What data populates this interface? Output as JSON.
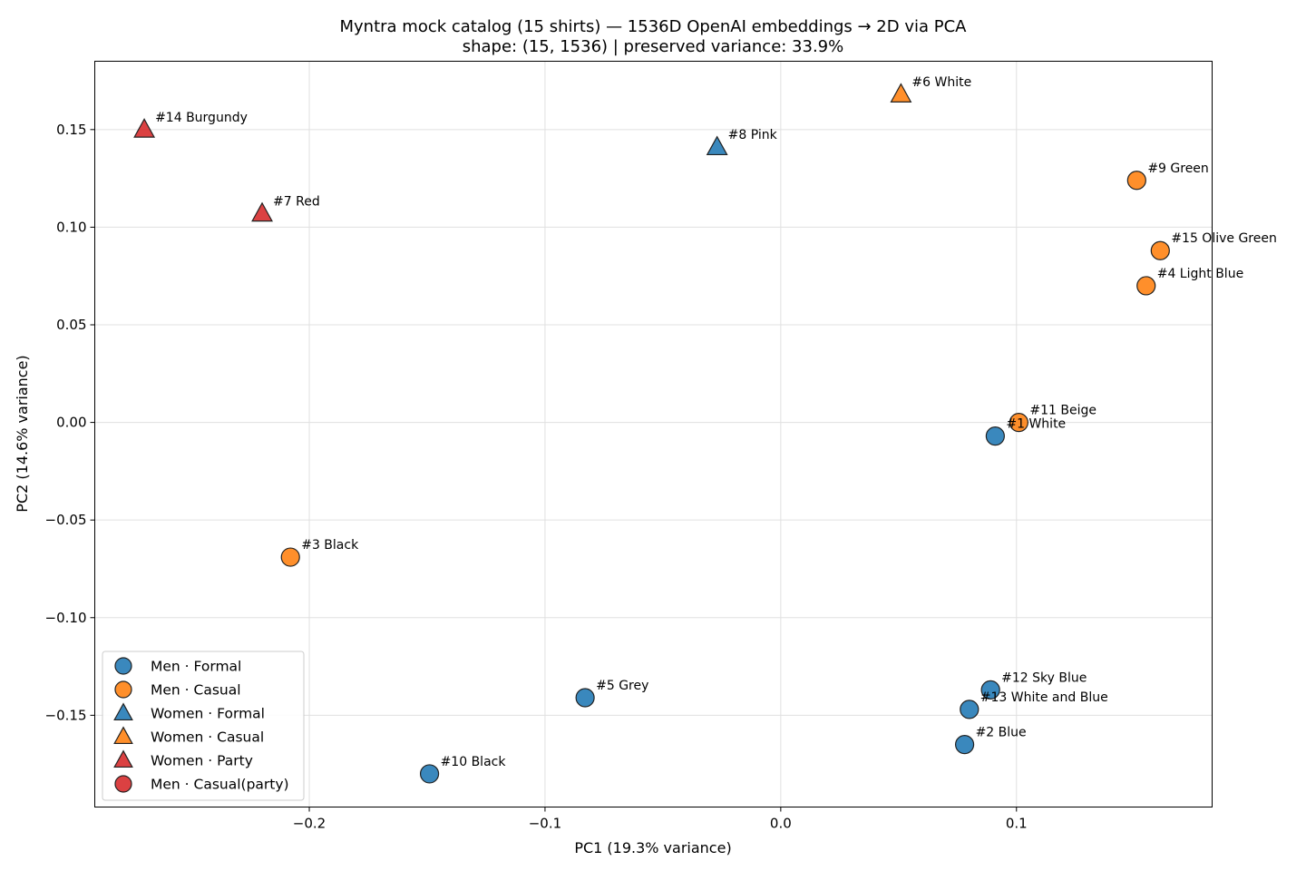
{
  "chart_data": {
    "type": "scatter",
    "title": "Myntra mock catalog (15 shirts) — 1536D OpenAI embeddings → 2D via PCA",
    "subtitle": "shape: (15, 1536)  |  preserved variance: 33.9%",
    "xlabel": "PC1 (19.3% variance)",
    "ylabel": "PC2 (14.6% variance)",
    "xlim": [
      -0.291,
      0.183
    ],
    "ylim": [
      -0.197,
      0.185
    ],
    "xticks": [
      {
        "value": -0.2,
        "label": "−0.2"
      },
      {
        "value": -0.1,
        "label": "−0.1"
      },
      {
        "value": 0.0,
        "label": "0.0"
      },
      {
        "value": 0.1,
        "label": "0.1"
      }
    ],
    "yticks": [
      {
        "value": 0.15,
        "label": "0.15"
      },
      {
        "value": 0.1,
        "label": "0.10"
      },
      {
        "value": 0.05,
        "label": "0.05"
      },
      {
        "value": 0.0,
        "label": "0.00"
      },
      {
        "value": -0.05,
        "label": "−0.05"
      },
      {
        "value": -0.1,
        "label": "−0.10"
      },
      {
        "value": -0.15,
        "label": "−0.15"
      }
    ],
    "grid": true,
    "legend_position": "lower-left",
    "series": [
      {
        "name": "Men · Formal",
        "marker": "circle",
        "color": "#1f77b4",
        "points": [
          {
            "label": "#1 White",
            "x": 0.091,
            "y": -0.007
          },
          {
            "label": "#2 Blue",
            "x": 0.078,
            "y": -0.165
          },
          {
            "label": "#5 Grey",
            "x": -0.083,
            "y": -0.141
          },
          {
            "label": "#10 Black",
            "x": -0.149,
            "y": -0.18
          },
          {
            "label": "#12 Sky Blue",
            "x": 0.089,
            "y": -0.137
          },
          {
            "label": "#13 White and Blue",
            "x": 0.08,
            "y": -0.147
          }
        ]
      },
      {
        "name": "Men · Casual",
        "marker": "circle",
        "color": "#ff7f0e",
        "points": [
          {
            "label": "#3 Black",
            "x": -0.208,
            "y": -0.069
          },
          {
            "label": "#4 Light Blue",
            "x": 0.155,
            "y": 0.07
          },
          {
            "label": "#9 Green",
            "x": 0.151,
            "y": 0.124
          },
          {
            "label": "#11 Beige",
            "x": 0.101,
            "y": 0.0
          },
          {
            "label": "#15 Olive Green",
            "x": 0.161,
            "y": 0.088
          }
        ]
      },
      {
        "name": "Women · Formal",
        "marker": "triangle",
        "color": "#1f77b4",
        "points": [
          {
            "label": "#8 Pink",
            "x": -0.027,
            "y": 0.141
          }
        ]
      },
      {
        "name": "Women · Casual",
        "marker": "triangle",
        "color": "#ff7f0e",
        "points": [
          {
            "label": "#6 White",
            "x": 0.051,
            "y": 0.168
          }
        ]
      },
      {
        "name": "Women · Party",
        "marker": "triangle",
        "color": "#d62728",
        "points": [
          {
            "label": "#14 Burgundy",
            "x": -0.27,
            "y": 0.15
          },
          {
            "label": "#7 Red",
            "x": -0.22,
            "y": 0.107
          }
        ]
      },
      {
        "name": "Men · Casual(party)",
        "marker": "circle",
        "color": "#d62728",
        "points": []
      }
    ]
  }
}
